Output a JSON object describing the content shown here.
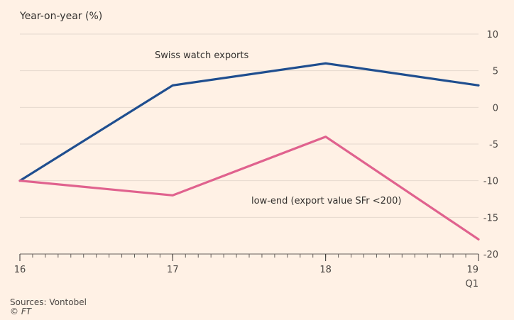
{
  "chart_data": {
    "type": "line",
    "ylabel": "Year-on-year (%)",
    "x": [
      16,
      17,
      18,
      19
    ],
    "x_tick_labels": [
      "16",
      "17",
      "18",
      "19"
    ],
    "x_tick_sublabel": "Q1",
    "ylim": [
      -20,
      10
    ],
    "y_ticks": [
      10,
      5,
      0,
      -5,
      -10,
      -15,
      -20
    ],
    "y_tick_labels": [
      "10",
      "5",
      "0",
      "-5",
      "-10",
      "-15",
      "-20"
    ],
    "grid": true,
    "series": [
      {
        "name": "Swiss watch exports",
        "values": [
          -10,
          3,
          6,
          3
        ],
        "color": "#1f4e8f"
      },
      {
        "name": "low-end (export value SFr <200)",
        "values": [
          -10,
          -12,
          -4,
          -18
        ],
        "color": "#e0628e"
      }
    ],
    "annotations": [
      "Swiss watch exports",
      "low-end (export value SFr <200)"
    ],
    "source": "Sources: Vontobel",
    "credit": "© FT"
  }
}
